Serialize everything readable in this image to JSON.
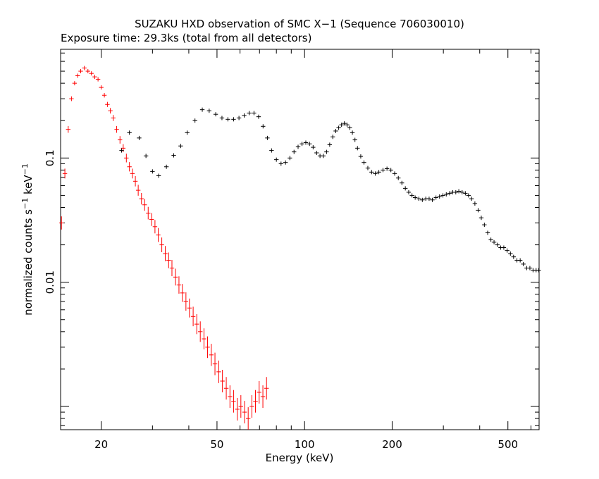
{
  "chart_data": {
    "type": "scatter",
    "title": "SUZAKU HXD observation of SMC X−1 (Sequence 706030010)",
    "subtitle": "Exposure time: 29.3ks (total from all detectors)",
    "xlabel": "Energy (keV)",
    "ylabel": "normalized counts s",
    "ylabel_sup1": "−1",
    "ylabel_mid": " keV",
    "ylabel_sup2": "−1",
    "x_scale": "log",
    "y_scale": "log",
    "xlim": [
      14.5,
      640
    ],
    "ylim": [
      0.00065,
      0.75
    ],
    "x_ticks": [
      20,
      50,
      100,
      200,
      500
    ],
    "x_tick_labels": [
      "20",
      "50",
      "100",
      "200",
      "500"
    ],
    "y_ticks": [
      0.01,
      0.1
    ],
    "y_tick_labels": [
      "0.01",
      "0.1"
    ],
    "grid": false,
    "legend": "none",
    "series": [
      {
        "color": "#ff0000",
        "points": [
          [
            14.6,
            0.03
          ],
          [
            15.0,
            0.075
          ],
          [
            15.4,
            0.17
          ],
          [
            15.8,
            0.3
          ],
          [
            16.2,
            0.4
          ],
          [
            16.6,
            0.46
          ],
          [
            17.0,
            0.5
          ],
          [
            17.5,
            0.53
          ],
          [
            18.0,
            0.5
          ],
          [
            18.5,
            0.48
          ],
          [
            19.0,
            0.45
          ],
          [
            19.5,
            0.43
          ],
          [
            20.0,
            0.37
          ],
          [
            20.5,
            0.32
          ],
          [
            21.0,
            0.27
          ],
          [
            21.5,
            0.24
          ],
          [
            22.0,
            0.21
          ],
          [
            22.6,
            0.17
          ],
          [
            23.2,
            0.14
          ],
          [
            23.8,
            0.12
          ],
          [
            24.4,
            0.1
          ],
          [
            25.0,
            0.085
          ],
          [
            25.6,
            0.075
          ],
          [
            26.2,
            0.065
          ],
          [
            26.8,
            0.055
          ],
          [
            27.5,
            0.047
          ],
          [
            28.2,
            0.042
          ],
          [
            29.0,
            0.036
          ],
          [
            29.8,
            0.032
          ],
          [
            30.6,
            0.028
          ],
          [
            31.4,
            0.024
          ],
          [
            32.3,
            0.02
          ],
          [
            33.2,
            0.017
          ],
          [
            34.1,
            0.015
          ],
          [
            35.0,
            0.013
          ],
          [
            36.0,
            0.011
          ],
          [
            37.0,
            0.0095
          ],
          [
            38.0,
            0.0082
          ],
          [
            39.1,
            0.007
          ],
          [
            40.2,
            0.0062
          ],
          [
            41.4,
            0.0053
          ],
          [
            42.6,
            0.0046
          ],
          [
            43.8,
            0.004
          ],
          [
            45.1,
            0.0035
          ],
          [
            46.4,
            0.003
          ],
          [
            47.8,
            0.0026
          ],
          [
            49.2,
            0.0022
          ],
          [
            50.7,
            0.0019
          ],
          [
            52.2,
            0.0016
          ],
          [
            53.8,
            0.0014
          ],
          [
            55.4,
            0.0012
          ],
          [
            57.0,
            0.0011
          ],
          [
            58.7,
            0.00095
          ],
          [
            60.4,
            0.001
          ],
          [
            62.2,
            0.0009
          ],
          [
            64.0,
            0.0008
          ],
          [
            65.9,
            0.001
          ],
          [
            67.8,
            0.0011
          ],
          [
            69.8,
            0.0013
          ],
          [
            71.9,
            0.0012
          ],
          [
            74.0,
            0.0014
          ]
        ]
      },
      {
        "color": "#000000",
        "points": [
          [
            25.0,
            0.16
          ],
          [
            23.5,
            0.115
          ],
          [
            27.0,
            0.145
          ],
          [
            28.5,
            0.104
          ],
          [
            30.0,
            0.078
          ],
          [
            31.5,
            0.072
          ],
          [
            33.5,
            0.085
          ],
          [
            35.5,
            0.105
          ],
          [
            37.5,
            0.125
          ],
          [
            39.5,
            0.16
          ],
          [
            42.0,
            0.2
          ],
          [
            44.5,
            0.245
          ],
          [
            47.0,
            0.24
          ],
          [
            49.5,
            0.225
          ],
          [
            52.0,
            0.21
          ],
          [
            54.5,
            0.205
          ],
          [
            57.0,
            0.205
          ],
          [
            59.5,
            0.21
          ],
          [
            62.0,
            0.22
          ],
          [
            64.5,
            0.23
          ],
          [
            67.0,
            0.23
          ],
          [
            69.5,
            0.215
          ],
          [
            72.0,
            0.18
          ],
          [
            74.5,
            0.145
          ],
          [
            77.0,
            0.115
          ],
          [
            80.0,
            0.097
          ],
          [
            83.0,
            0.09
          ],
          [
            86.0,
            0.092
          ],
          [
            89.0,
            0.1
          ],
          [
            92.0,
            0.112
          ],
          [
            95.0,
            0.123
          ],
          [
            98.0,
            0.13
          ],
          [
            101.0,
            0.133
          ],
          [
            104.0,
            0.13
          ],
          [
            107.0,
            0.122
          ],
          [
            110.0,
            0.11
          ],
          [
            113.0,
            0.104
          ],
          [
            116.0,
            0.104
          ],
          [
            119.0,
            0.112
          ],
          [
            122.0,
            0.128
          ],
          [
            125.0,
            0.148
          ],
          [
            128.0,
            0.165
          ],
          [
            131.0,
            0.175
          ],
          [
            134.0,
            0.185
          ],
          [
            137.0,
            0.19
          ],
          [
            140.0,
            0.185
          ],
          [
            143.0,
            0.175
          ],
          [
            146.0,
            0.16
          ],
          [
            149.0,
            0.14
          ],
          [
            152.0,
            0.12
          ],
          [
            156.0,
            0.103
          ],
          [
            160.0,
            0.092
          ],
          [
            165.0,
            0.083
          ],
          [
            170.0,
            0.077
          ],
          [
            175.0,
            0.075
          ],
          [
            180.0,
            0.077
          ],
          [
            186.0,
            0.08
          ],
          [
            192.0,
            0.082
          ],
          [
            198.0,
            0.08
          ],
          [
            204.0,
            0.075
          ],
          [
            210.0,
            0.069
          ],
          [
            216.0,
            0.063
          ],
          [
            222.0,
            0.057
          ],
          [
            228.0,
            0.053
          ],
          [
            234.0,
            0.05
          ],
          [
            240.0,
            0.048
          ],
          [
            247.0,
            0.047
          ],
          [
            254.0,
            0.046
          ],
          [
            261.0,
            0.047
          ],
          [
            268.0,
            0.047
          ],
          [
            275.0,
            0.046
          ],
          [
            283.0,
            0.048
          ],
          [
            291.0,
            0.049
          ],
          [
            299.0,
            0.05
          ],
          [
            307.0,
            0.051
          ],
          [
            315.0,
            0.052
          ],
          [
            323.0,
            0.053
          ],
          [
            331.0,
            0.053
          ],
          [
            339.0,
            0.054
          ],
          [
            348.0,
            0.053
          ],
          [
            357.0,
            0.052
          ],
          [
            366.0,
            0.05
          ],
          [
            375.0,
            0.047
          ],
          [
            385.0,
            0.043
          ],
          [
            395.0,
            0.038
          ],
          [
            405.0,
            0.033
          ],
          [
            415.0,
            0.029
          ],
          [
            426.0,
            0.025
          ],
          [
            437.0,
            0.022
          ],
          [
            448.0,
            0.021
          ],
          [
            460.0,
            0.02
          ],
          [
            472.0,
            0.019
          ],
          [
            484.0,
            0.019
          ],
          [
            497.0,
            0.018
          ],
          [
            510.0,
            0.017
          ],
          [
            523.0,
            0.016
          ],
          [
            537.0,
            0.015
          ],
          [
            551.0,
            0.015
          ],
          [
            565.0,
            0.014
          ],
          [
            580.0,
            0.013
          ],
          [
            595.0,
            0.013
          ],
          [
            610.0,
            0.0125
          ],
          [
            625.0,
            0.0125
          ],
          [
            638.0,
            0.0125
          ]
        ]
      }
    ]
  }
}
